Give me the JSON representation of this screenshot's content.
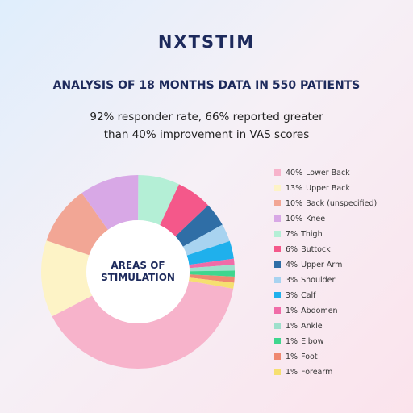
{
  "brand": "NXTSTIM",
  "chart_data": {
    "type": "donut",
    "title": "ANALYSIS OF 18 MONTHS DATA IN 550 PATIENTS",
    "subtitle": "92% responder rate, 66% reported greater than 40% improvement in VAS scores",
    "center_label": "AREAS OF STIMULATION",
    "categories": [
      "Lower Back",
      "Upper Back",
      "Back (unspecified)",
      "Knee",
      "Thigh",
      "Buttock",
      "Upper Arm",
      "Shoulder",
      "Calf",
      "Abdomen",
      "Ankle",
      "Elbow",
      "Foot",
      "Forearm"
    ],
    "values": [
      40,
      13,
      10,
      10,
      7,
      6,
      4,
      3,
      3,
      1,
      1,
      1,
      1,
      1
    ],
    "value_labels": [
      "40%",
      "13%",
      "10%",
      "10%",
      "7%",
      "6%",
      "4%",
      "3%",
      "3%",
      "1%",
      "1%",
      "1%",
      "1%",
      "1%"
    ],
    "colors": [
      "#f7b3cb",
      "#fdf3c6",
      "#f2a695",
      "#d8a8e6",
      "#b4efd6",
      "#f4588a",
      "#2f6ea6",
      "#a8d3f0",
      "#1fb0ec",
      "#f06ca8",
      "#9ee0cc",
      "#3fd68e",
      "#ef8870",
      "#f6df70"
    ],
    "legend": "right"
  }
}
